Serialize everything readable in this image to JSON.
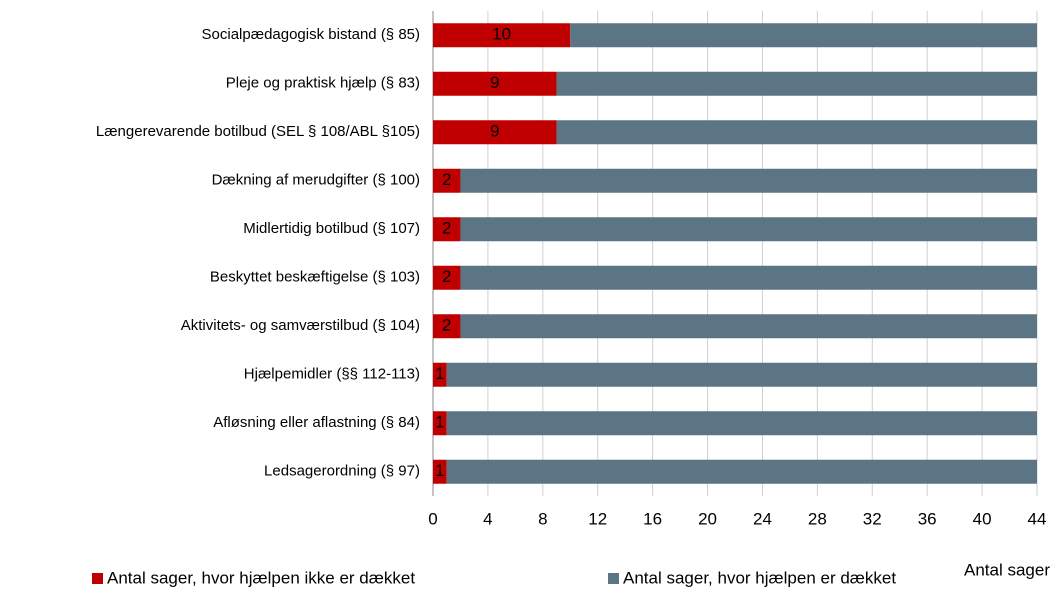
{
  "chart_data": {
    "type": "stacked_barh",
    "categories": [
      "Socialpædagogisk bistand (§ 85)",
      "Pleje og praktisk hjælp (§ 83)",
      "Længerevarende botilbud (SEL § 108/ABL §105)",
      "Dækning af merudgifter (§ 100)",
      "Midlertidig botilbud (§ 107)",
      "Beskyttet beskæftigelse (§ 103)",
      "Aktivitets- og samværstilbud (§ 104)",
      "Hjælpemidler (§§ 112-113)",
      "Afløsning eller aflastning (§ 84)",
      "Ledsagerordning (§ 97)"
    ],
    "series": [
      {
        "name": "Antal sager, hvor hjælpen ikke er dækket",
        "color": "#c00000",
        "values": [
          10,
          9,
          9,
          2,
          2,
          2,
          2,
          1,
          1,
          1
        ],
        "labels": true
      },
      {
        "name": "Antal sager, hvor hjælpen er dækket",
        "color": "#5b7584",
        "values": [
          34,
          35,
          35,
          42,
          42,
          42,
          42,
          43,
          43,
          43
        ]
      }
    ],
    "xlabel": "Antal sager",
    "xlim": [
      0,
      44
    ],
    "xticks": [
      0,
      4,
      8,
      12,
      16,
      20,
      24,
      28,
      32,
      36,
      40,
      44
    ],
    "grid": true
  }
}
